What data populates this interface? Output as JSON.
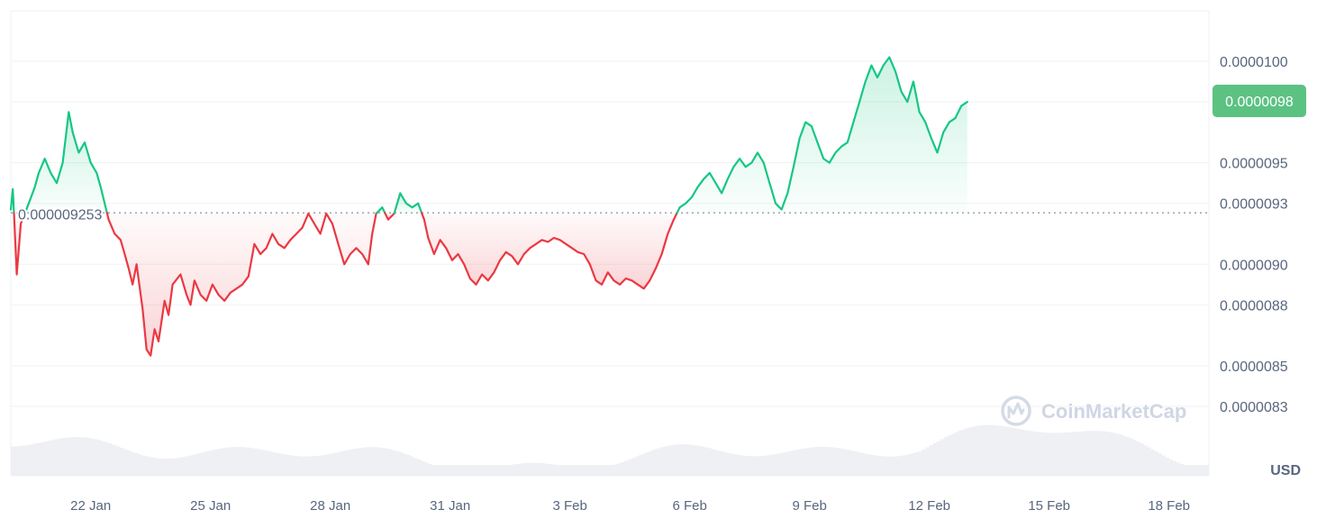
{
  "chart_data": {
    "type": "area",
    "currency_label": "USD",
    "baseline_value": 9.253e-09,
    "baseline_label": "0.000009253",
    "current_value": 9.8e-09,
    "current_label": "0.0000098",
    "y_ticks": [
      {
        "value": 1e-08,
        "label": "0.0000100"
      },
      {
        "value": 9.8e-09,
        "label": "0.0000098"
      },
      {
        "value": 9.5e-09,
        "label": "0.0000095"
      },
      {
        "value": 9.3e-09,
        "label": "0.0000093"
      },
      {
        "value": 9e-09,
        "label": "0.0000090"
      },
      {
        "value": 8.8e-09,
        "label": "0.0000088"
      },
      {
        "value": 8.5e-09,
        "label": "0.0000085"
      },
      {
        "value": 8.3e-09,
        "label": "0.0000083"
      }
    ],
    "x_ticks": [
      "22 Jan",
      "25 Jan",
      "28 Jan",
      "31 Jan",
      "3 Feb",
      "6 Feb",
      "9 Feb",
      "12 Feb",
      "15 Feb",
      "18 Feb"
    ],
    "x_start_day": 20.0,
    "x_end_day": 50.0,
    "tick_days": [
      22,
      25,
      28,
      31,
      34,
      37,
      40,
      43,
      46,
      49
    ],
    "series": [
      {
        "points": [
          [
            20.0,
            9.27
          ],
          [
            20.05,
            9.37
          ],
          [
            20.15,
            8.95
          ],
          [
            20.25,
            9.2
          ],
          [
            20.45,
            9.3
          ],
          [
            20.6,
            9.38
          ],
          [
            20.7,
            9.45
          ],
          [
            20.85,
            9.52
          ],
          [
            21.0,
            9.45
          ],
          [
            21.15,
            9.4
          ],
          [
            21.3,
            9.5
          ],
          [
            21.45,
            9.75
          ],
          [
            21.55,
            9.65
          ],
          [
            21.7,
            9.55
          ],
          [
            21.85,
            9.6
          ],
          [
            22.0,
            9.5
          ],
          [
            22.15,
            9.45
          ],
          [
            22.25,
            9.38
          ],
          [
            22.35,
            9.3
          ],
          [
            22.45,
            9.22
          ],
          [
            22.6,
            9.15
          ],
          [
            22.75,
            9.12
          ],
          [
            22.85,
            9.05
          ],
          [
            22.95,
            8.98
          ],
          [
            23.05,
            8.9
          ],
          [
            23.15,
            9.0
          ],
          [
            23.3,
            8.78
          ],
          [
            23.4,
            8.58
          ],
          [
            23.5,
            8.55
          ],
          [
            23.6,
            8.68
          ],
          [
            23.7,
            8.62
          ],
          [
            23.85,
            8.82
          ],
          [
            23.95,
            8.75
          ],
          [
            24.05,
            8.9
          ],
          [
            24.25,
            8.95
          ],
          [
            24.4,
            8.85
          ],
          [
            24.5,
            8.8
          ],
          [
            24.6,
            8.92
          ],
          [
            24.75,
            8.85
          ],
          [
            24.9,
            8.82
          ],
          [
            25.05,
            8.9
          ],
          [
            25.2,
            8.85
          ],
          [
            25.35,
            8.82
          ],
          [
            25.5,
            8.86
          ],
          [
            25.65,
            8.88
          ],
          [
            25.8,
            8.9
          ],
          [
            25.95,
            8.94
          ],
          [
            26.1,
            9.1
          ],
          [
            26.25,
            9.05
          ],
          [
            26.4,
            9.08
          ],
          [
            26.55,
            9.15
          ],
          [
            26.7,
            9.1
          ],
          [
            26.85,
            9.08
          ],
          [
            27.0,
            9.12
          ],
          [
            27.15,
            9.15
          ],
          [
            27.3,
            9.18
          ],
          [
            27.45,
            9.25
          ],
          [
            27.6,
            9.2
          ],
          [
            27.75,
            9.15
          ],
          [
            27.9,
            9.25
          ],
          [
            28.05,
            9.2
          ],
          [
            28.2,
            9.1
          ],
          [
            28.35,
            9.0
          ],
          [
            28.5,
            9.05
          ],
          [
            28.65,
            9.08
          ],
          [
            28.8,
            9.05
          ],
          [
            28.95,
            9.0
          ],
          [
            29.05,
            9.15
          ],
          [
            29.15,
            9.25
          ],
          [
            29.3,
            9.28
          ],
          [
            29.45,
            9.22
          ],
          [
            29.6,
            9.25
          ],
          [
            29.75,
            9.35
          ],
          [
            29.9,
            9.3
          ],
          [
            30.05,
            9.28
          ],
          [
            30.2,
            9.3
          ],
          [
            30.35,
            9.22
          ],
          [
            30.45,
            9.13
          ],
          [
            30.6,
            9.05
          ],
          [
            30.75,
            9.12
          ],
          [
            30.9,
            9.08
          ],
          [
            31.05,
            9.02
          ],
          [
            31.2,
            9.05
          ],
          [
            31.35,
            9.0
          ],
          [
            31.5,
            8.93
          ],
          [
            31.65,
            8.9
          ],
          [
            31.8,
            8.95
          ],
          [
            31.95,
            8.92
          ],
          [
            32.1,
            8.96
          ],
          [
            32.25,
            9.02
          ],
          [
            32.4,
            9.06
          ],
          [
            32.55,
            9.04
          ],
          [
            32.7,
            9.0
          ],
          [
            32.85,
            9.05
          ],
          [
            33.0,
            9.08
          ],
          [
            33.15,
            9.1
          ],
          [
            33.3,
            9.12
          ],
          [
            33.45,
            9.11
          ],
          [
            33.6,
            9.13
          ],
          [
            33.75,
            9.12
          ],
          [
            33.9,
            9.1
          ],
          [
            34.05,
            9.08
          ],
          [
            34.2,
            9.06
          ],
          [
            34.35,
            9.05
          ],
          [
            34.5,
            9.0
          ],
          [
            34.65,
            8.92
          ],
          [
            34.8,
            8.9
          ],
          [
            34.95,
            8.96
          ],
          [
            35.1,
            8.92
          ],
          [
            35.25,
            8.9
          ],
          [
            35.4,
            8.93
          ],
          [
            35.55,
            8.92
          ],
          [
            35.7,
            8.9
          ],
          [
            35.85,
            8.88
          ],
          [
            36.0,
            8.92
          ],
          [
            36.15,
            8.98
          ],
          [
            36.3,
            9.05
          ],
          [
            36.45,
            9.15
          ],
          [
            36.6,
            9.22
          ],
          [
            36.75,
            9.28
          ],
          [
            36.9,
            9.3
          ],
          [
            37.05,
            9.33
          ],
          [
            37.2,
            9.38
          ],
          [
            37.35,
            9.42
          ],
          [
            37.5,
            9.45
          ],
          [
            37.65,
            9.4
          ],
          [
            37.8,
            9.35
          ],
          [
            37.95,
            9.42
          ],
          [
            38.1,
            9.48
          ],
          [
            38.25,
            9.52
          ],
          [
            38.4,
            9.48
          ],
          [
            38.55,
            9.5
          ],
          [
            38.7,
            9.55
          ],
          [
            38.85,
            9.5
          ],
          [
            39.0,
            9.4
          ],
          [
            39.15,
            9.3
          ],
          [
            39.3,
            9.27
          ],
          [
            39.45,
            9.35
          ],
          [
            39.6,
            9.48
          ],
          [
            39.75,
            9.62
          ],
          [
            39.9,
            9.7
          ],
          [
            40.05,
            9.68
          ],
          [
            40.2,
            9.6
          ],
          [
            40.35,
            9.52
          ],
          [
            40.5,
            9.5
          ],
          [
            40.65,
            9.55
          ],
          [
            40.8,
            9.58
          ],
          [
            40.95,
            9.6
          ],
          [
            41.1,
            9.7
          ],
          [
            41.25,
            9.8
          ],
          [
            41.4,
            9.9
          ],
          [
            41.55,
            9.98
          ],
          [
            41.7,
            9.92
          ],
          [
            41.85,
            9.98
          ],
          [
            42.0,
            10.02
          ],
          [
            42.15,
            9.95
          ],
          [
            42.3,
            9.85
          ],
          [
            42.45,
            9.8
          ],
          [
            42.6,
            9.9
          ],
          [
            42.75,
            9.75
          ],
          [
            42.9,
            9.7
          ],
          [
            43.05,
            9.62
          ],
          [
            43.2,
            9.55
          ],
          [
            43.35,
            9.65
          ],
          [
            43.5,
            9.7
          ],
          [
            43.65,
            9.72
          ],
          [
            43.8,
            9.78
          ],
          [
            43.95,
            9.8
          ]
        ]
      }
    ]
  }
}
